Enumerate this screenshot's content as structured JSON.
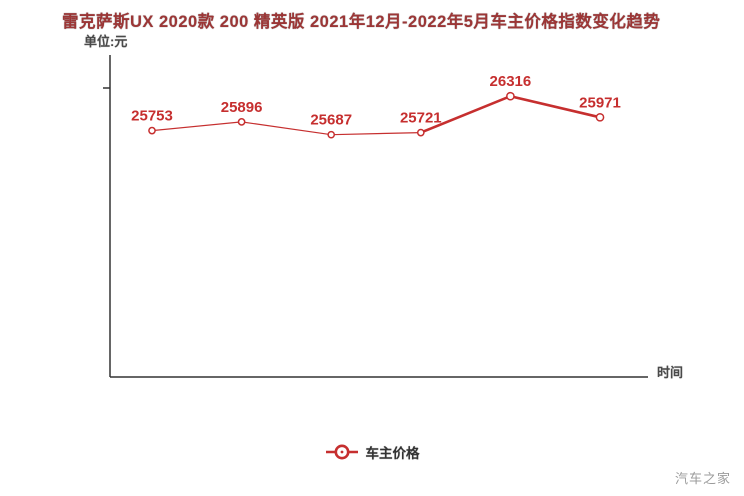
{
  "header": {
    "title": "雷克萨斯UX 2020款 200 精英版 2021年12月-2022年5月车主价格指数变化趋势"
  },
  "axes": {
    "y_unit": "单位:元",
    "x_label": "时间"
  },
  "legend": {
    "label": "车主价格"
  },
  "watermark": {
    "text": "汽车之家"
  },
  "colors": {
    "series": "#c62f2f",
    "data_label": "#c62f2f",
    "axis": "#333333",
    "title": "#9c3636",
    "muted_text": "#4a4a4a",
    "watermark": "#9b9b9b",
    "background": "#ffffff"
  },
  "chart_data": {
    "type": "line",
    "title": "雷克萨斯UX 2020款 200 精英版 2021年12月-2022年5月车主价格指数变化趋势",
    "ylabel": "单位:元",
    "xlabel": "时间",
    "x_tick_labels_visible": false,
    "y_tick_labels_visible": false,
    "grid": false,
    "legend_position": "bottom-center",
    "ylim": [
      25600,
      26450
    ],
    "series": [
      {
        "name": "车主价格",
        "values": [
          25753,
          25896,
          25687,
          25721,
          26316,
          25971
        ],
        "data_labels": [
          "25753",
          "25896",
          "25687",
          "25721",
          "26316",
          "25971"
        ]
      }
    ]
  }
}
